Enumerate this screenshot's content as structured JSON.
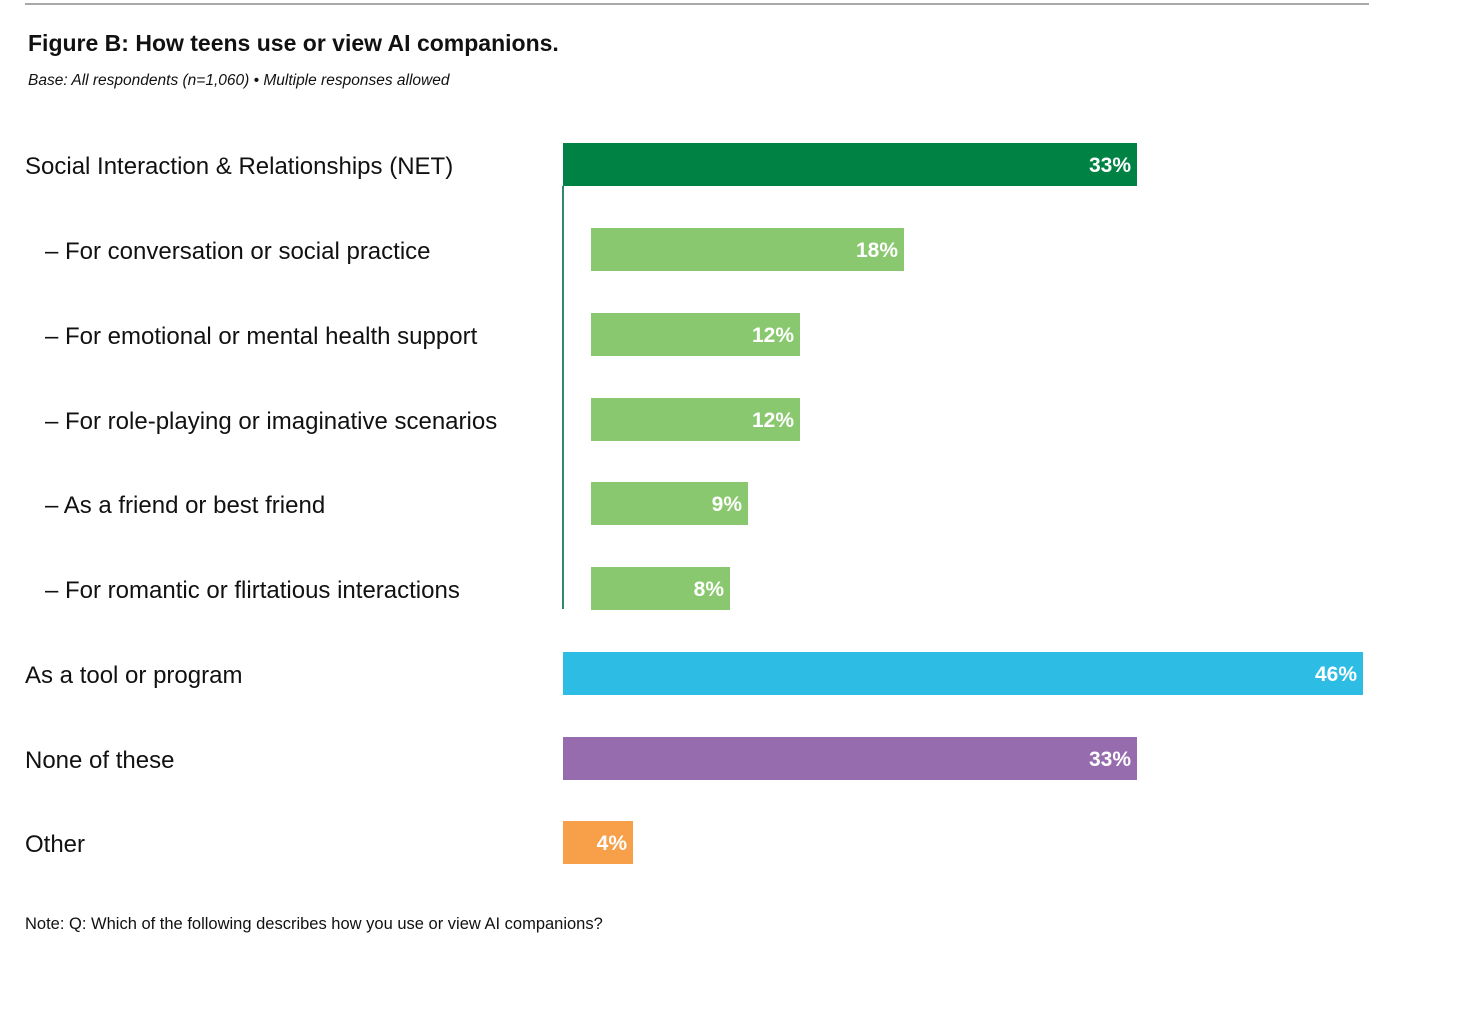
{
  "chart_data": {
    "type": "bar",
    "orientation": "horizontal",
    "title": "Figure B: How teens use or view AI companions.",
    "subtitle": "Base: All respondents (n=1,060) • Multiple responses allowed",
    "note": "Note: Q: Which of the following describes how you use or view AI companions?",
    "xlim": [
      0,
      46
    ],
    "grid": false,
    "legend": "none",
    "categories": [
      {
        "label": "Social Interaction & Relationships (NET)",
        "value": 33,
        "value_label": "33%",
        "color": "#008244",
        "level": 0
      },
      {
        "label": "– For conversation or social practice",
        "value": 18,
        "value_label": "18%",
        "color": "#89c86e",
        "level": 1
      },
      {
        "label": "– For emotional or mental health support",
        "value": 12,
        "value_label": "12%",
        "color": "#89c86e",
        "level": 1
      },
      {
        "label": "– For role-playing or imaginative scenarios",
        "value": 12,
        "value_label": "12%",
        "color": "#89c86e",
        "level": 1
      },
      {
        "label": "– As a friend or best friend",
        "value": 9,
        "value_label": "9%",
        "color": "#89c86e",
        "level": 1
      },
      {
        "label": "– For romantic or flirtatious interactions",
        "value": 8,
        "value_label": "8%",
        "color": "#89c86e",
        "level": 1
      },
      {
        "label": "As a tool or program",
        "value": 46,
        "value_label": "46%",
        "color": "#2dbde4",
        "level": 0
      },
      {
        "label": "None of these",
        "value": 33,
        "value_label": "33%",
        "color": "#976caf",
        "level": 0
      },
      {
        "label": "Other",
        "value": 4,
        "value_label": "4%",
        "color": "#f8a049",
        "level": 0
      }
    ]
  }
}
